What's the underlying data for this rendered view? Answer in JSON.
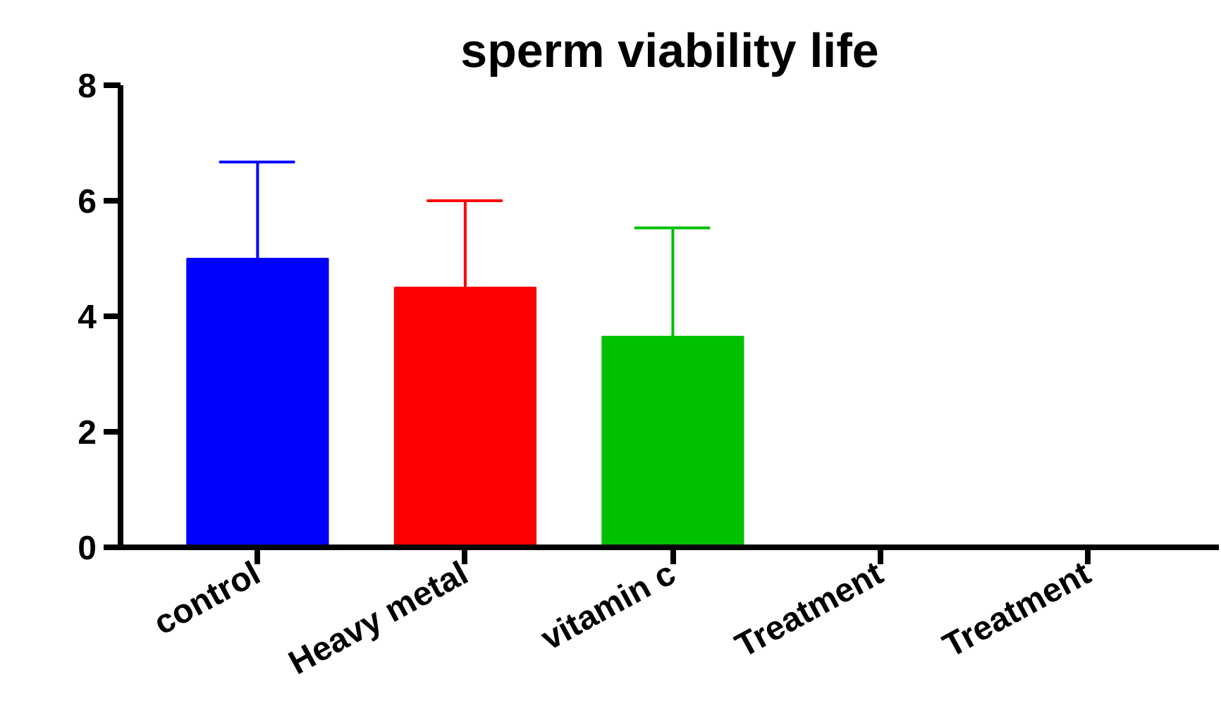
{
  "chart_data": {
    "type": "bar",
    "title": "sperm viability life",
    "categories": [
      "control",
      "Heavy metal",
      "vitamin c",
      "Treatment",
      "Treatment"
    ],
    "values": [
      5.0,
      4.5,
      3.65,
      null,
      null
    ],
    "colors": [
      "#0000ff",
      "#ff0000",
      "#00c000",
      "#000000",
      "#000000"
    ],
    "errors": [
      1.67,
      1.5,
      1.88,
      null,
      null
    ],
    "ylim": [
      0,
      8
    ],
    "yticks": [
      0,
      2,
      4,
      6,
      8
    ],
    "grid": false
  }
}
